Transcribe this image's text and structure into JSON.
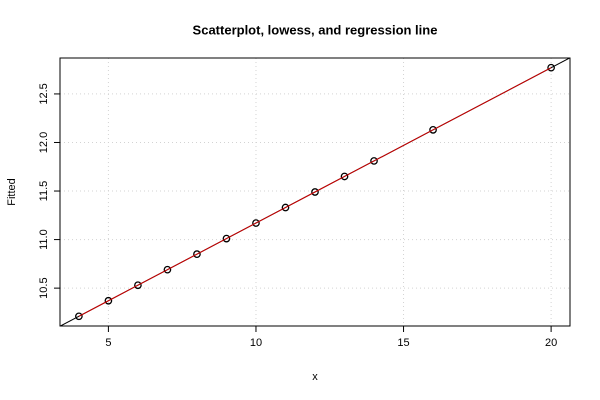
{
  "chart_data": {
    "type": "scatter",
    "title": "Scatterplot, lowess, and regression line",
    "x_label": "x",
    "y_label": "Fitted",
    "x": [
      4,
      5,
      6,
      7,
      8,
      9,
      10,
      11,
      12,
      13,
      14,
      16,
      20
    ],
    "series": [
      {
        "name": "points",
        "color": "#000000",
        "values": [
          10.21,
          10.37,
          10.53,
          10.69,
          10.85,
          11.01,
          11.17,
          11.33,
          11.49,
          11.65,
          11.81,
          12.13,
          12.77
        ]
      },
      {
        "name": "lowess",
        "color": "#cc0000",
        "values": [
          10.21,
          10.37,
          10.53,
          10.69,
          10.85,
          11.01,
          11.17,
          11.33,
          11.49,
          11.65,
          11.81,
          12.13,
          12.77
        ]
      }
    ],
    "regression_line": {
      "intercept": 9.57,
      "slope": 0.16,
      "color": "#000000"
    },
    "xlim": [
      3.36,
      20.64
    ],
    "ylim": [
      10.11,
      12.87
    ],
    "xticks": [
      5,
      10,
      15,
      20
    ],
    "yticks": [
      10.5,
      11.0,
      11.5,
      12.0,
      12.5
    ],
    "grid": true
  }
}
